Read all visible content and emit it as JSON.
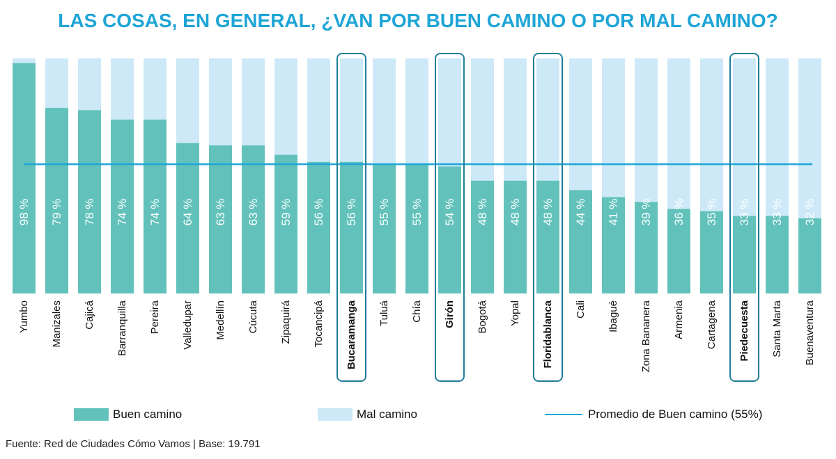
{
  "title": "LAS COSAS, EN GENERAL, ¿VAN POR BUEN CAMINO O POR MAL CAMINO?",
  "colors": {
    "buen": "#62c2bb",
    "mal": "#cde9f8",
    "average_line": "#1ea5d6",
    "highlight": "#1f7e98",
    "title": "#1ea5d6"
  },
  "legend": {
    "buen": "Buen camino",
    "mal": "Mal camino",
    "average": "Promedio de Buen camino (55%)"
  },
  "source": "Fuente: Red de Ciudades Cómo Vamos | Base: 19.791",
  "chart_data": {
    "type": "bar",
    "stacked": true,
    "categories": [
      "Yumbo",
      "Manizales",
      "Cajicá",
      "Barranquilla",
      "Pereira",
      "Valledupar",
      "Medellín",
      "Cúcuta",
      "Zipaquirá",
      "Tocancipá",
      "Bucaramanga",
      "Tuluá",
      "Chía",
      "Girón",
      "Bogotá",
      "Yopal",
      "Floridablanca",
      "Cali",
      "Ibagué",
      "Zona Bananera",
      "Armenia",
      "Cartagena",
      "Piedecuesta",
      "Santa Marta",
      "Buenaventura"
    ],
    "series": [
      {
        "name": "Buen camino",
        "values": [
          98,
          79,
          78,
          74,
          74,
          64,
          63,
          63,
          59,
          56,
          56,
          55,
          55,
          54,
          48,
          48,
          48,
          44,
          41,
          39,
          36,
          35,
          33,
          33,
          32
        ]
      },
      {
        "name": "Mal camino",
        "values": [
          2,
          21,
          22,
          26,
          26,
          36,
          37,
          37,
          41,
          44,
          44,
          45,
          45,
          46,
          52,
          52,
          52,
          56,
          59,
          61,
          64,
          65,
          67,
          67,
          68
        ]
      }
    ],
    "data_labels": [
      "98 %",
      "79 %",
      "78 %",
      "74 %",
      "74 %",
      "64 %",
      "63 %",
      "63 %",
      "59 %",
      "56 %",
      "56 %",
      "55 %",
      "55 %",
      "54 %",
      "48 %",
      "48 %",
      "48 %",
      "44 %",
      "41 %",
      "39 %",
      "36 %",
      "35 %",
      "33 %",
      "33 %",
      "32 %"
    ],
    "average": {
      "name": "Promedio de Buen camino (55%)",
      "value": 55
    },
    "highlighted": [
      "Bucaramanga",
      "Girón",
      "Floridablanca",
      "Piedecuesta"
    ],
    "ylim": [
      0,
      100
    ],
    "legend_position": "bottom",
    "grid": false
  }
}
